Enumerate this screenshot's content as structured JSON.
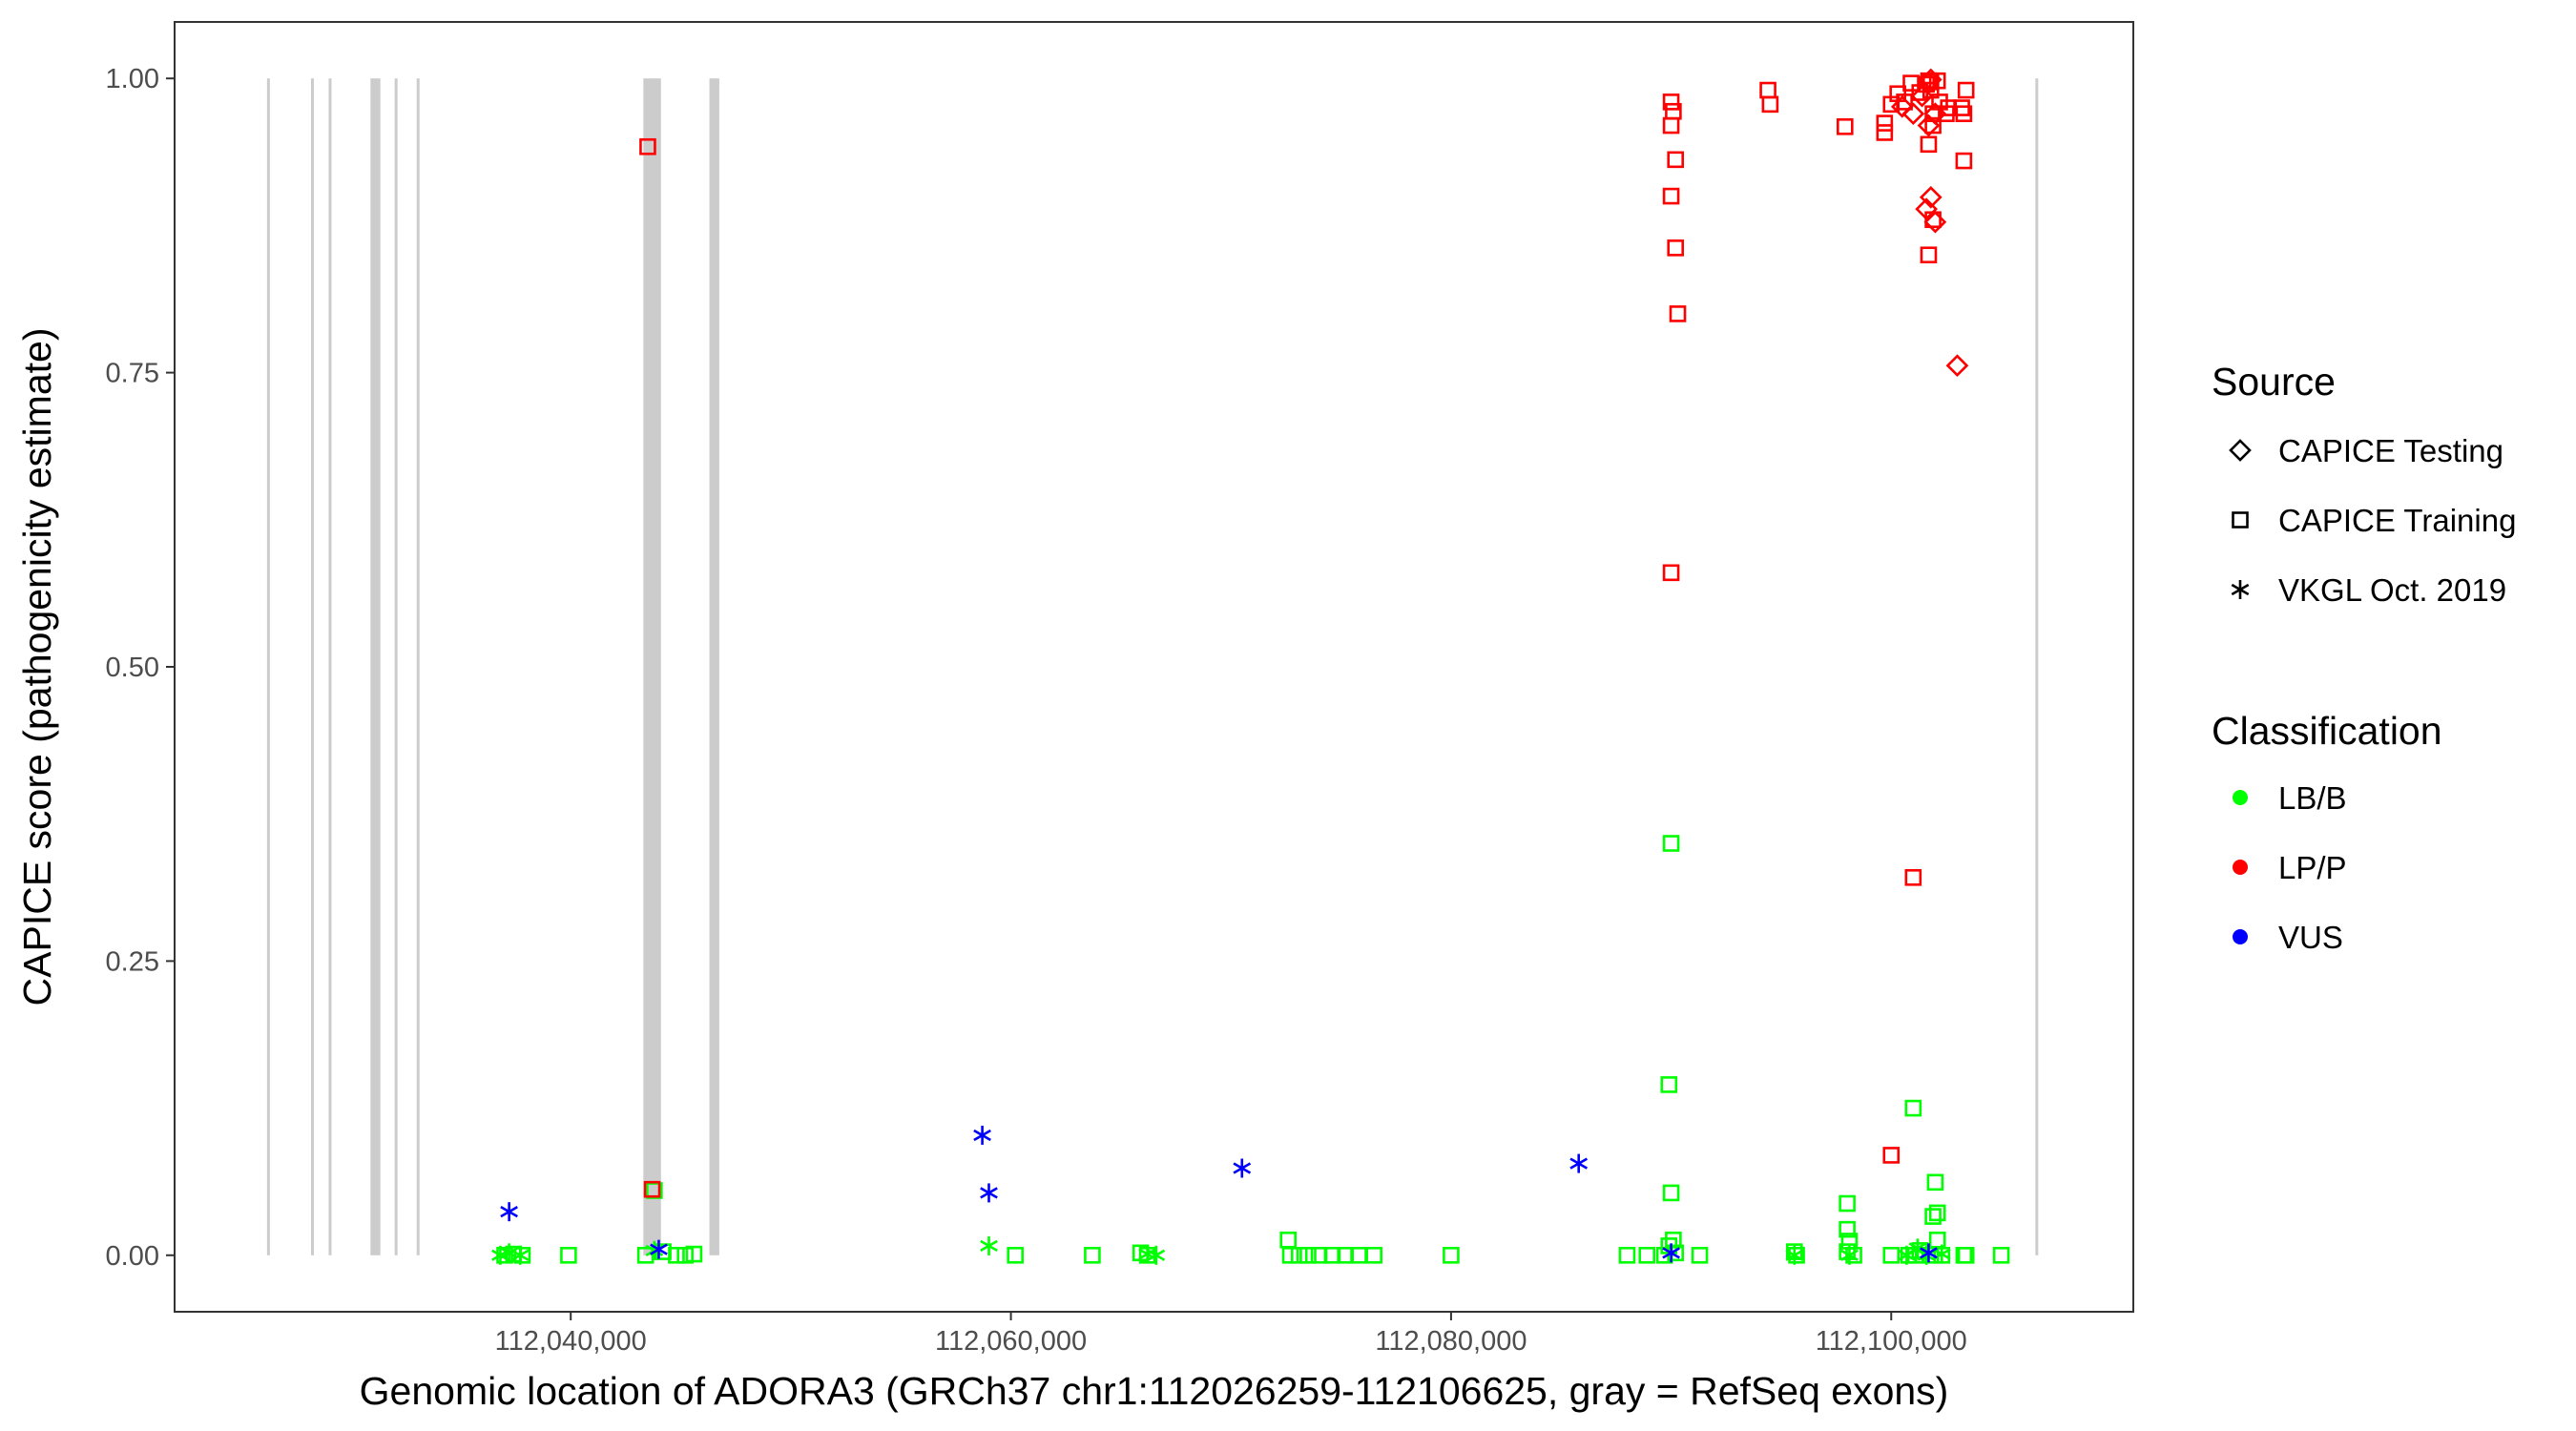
{
  "chart_data": {
    "type": "scatter",
    "title": "",
    "xlabel": "Genomic location of ADORA3 (GRCh37 chr1:112026259-112106625, gray = RefSeq exons)",
    "ylabel": "CAPICE score (pathogenicity estimate)",
    "xlim": [
      112022000,
      112111000
    ],
    "ylim": [
      -0.048,
      1.048
    ],
    "x_ticks": [
      112040000,
      112060000,
      112080000,
      112100000
    ],
    "x_tick_labels": [
      "112,040,000",
      "112,060,000",
      "112,080,000",
      "112,100,000"
    ],
    "y_ticks": [
      0,
      0.25,
      0.5,
      0.75,
      1
    ],
    "y_tick_labels": [
      "0.00",
      "0.25",
      "0.50",
      "0.75",
      "1.00"
    ],
    "grid": false,
    "exons": [
      [
        112026200,
        112026320
      ],
      [
        112028200,
        112028320
      ],
      [
        112029000,
        112029120
      ],
      [
        112030900,
        112031350
      ],
      [
        112032000,
        112032120
      ],
      [
        112033000,
        112033120
      ],
      [
        112043300,
        112044100
      ],
      [
        112046300,
        112046750
      ],
      [
        112106550,
        112106680
      ]
    ],
    "exon_color": "#cccccc",
    "colors": {
      "LB/B": "#00ff00",
      "LP/P": "#ff0000",
      "VUS": "#0000ff"
    },
    "legend": {
      "position": "right",
      "source_title": "Source",
      "source_items": [
        {
          "label": "CAPICE Testing",
          "shape": "diamond"
        },
        {
          "label": "CAPICE Training",
          "shape": "square"
        },
        {
          "label": "VKGL Oct. 2019",
          "shape": "asterisk"
        }
      ],
      "class_title": "Classification",
      "class_items": [
        {
          "label": "LB/B",
          "color": "#00ff00"
        },
        {
          "label": "LP/P",
          "color": "#ff0000"
        },
        {
          "label": "VUS",
          "color": "#0000ff"
        }
      ]
    },
    "series": [
      {
        "name": "CAPICE Training",
        "classification": "LB/B",
        "shape": "square",
        "color": "#00ff00",
        "points": [
          [
            112037000,
            0.0
          ],
          [
            112037400,
            0.001
          ],
          [
            112037800,
            0.0
          ],
          [
            112039900,
            0.0
          ],
          [
            112043400,
            0.0
          ],
          [
            112043800,
            0.055
          ],
          [
            112044200,
            0.003
          ],
          [
            112044800,
            0.0
          ],
          [
            112045200,
            0.0
          ],
          [
            112045600,
            0.001
          ],
          [
            112060200,
            0.0
          ],
          [
            112063700,
            0.0
          ],
          [
            112065900,
            0.002
          ],
          [
            112066200,
            0.0
          ],
          [
            112072600,
            0.013
          ],
          [
            112072700,
            0.0
          ],
          [
            112073100,
            0.0
          ],
          [
            112073500,
            0.0
          ],
          [
            112074000,
            0.0
          ],
          [
            112074600,
            0.0
          ],
          [
            112075200,
            0.0
          ],
          [
            112075800,
            0.0
          ],
          [
            112076500,
            0.0
          ],
          [
            112080000,
            0.0
          ],
          [
            112088000,
            0.0
          ],
          [
            112088900,
            0.0
          ],
          [
            112089700,
            0.0
          ],
          [
            112090000,
            0.35
          ],
          [
            112089900,
            0.145
          ],
          [
            112090000,
            0.053
          ],
          [
            112090100,
            0.013
          ],
          [
            112089900,
            0.008
          ],
          [
            112090200,
            0.002
          ],
          [
            112091300,
            0.0
          ],
          [
            112095600,
            0.003
          ],
          [
            112095700,
            0.0
          ],
          [
            112098000,
            0.044
          ],
          [
            112098000,
            0.022
          ],
          [
            112098100,
            0.012
          ],
          [
            112098000,
            0.003
          ],
          [
            112098300,
            0.0
          ],
          [
            112100000,
            0.0
          ],
          [
            112100800,
            0.0
          ],
          [
            112101100,
            0.0
          ],
          [
            112101000,
            0.125
          ],
          [
            112101300,
            0.004
          ],
          [
            112101800,
            0.0
          ],
          [
            112102000,
            0.062
          ],
          [
            112102100,
            0.036
          ],
          [
            112101900,
            0.033
          ],
          [
            112102100,
            0.013
          ],
          [
            112102300,
            0.0
          ],
          [
            112103300,
            0.0
          ],
          [
            112103400,
            0.0
          ],
          [
            112105000,
            0.0
          ]
        ]
      },
      {
        "name": "CAPICE Training",
        "classification": "LP/P",
        "shape": "square",
        "color": "#ff0000",
        "points": [
          [
            112043500,
            0.942
          ],
          [
            112043700,
            0.056
          ],
          [
            112090000,
            0.98
          ],
          [
            112090100,
            0.972
          ],
          [
            112090000,
            0.96
          ],
          [
            112090200,
            0.931
          ],
          [
            112090000,
            0.9
          ],
          [
            112090200,
            0.856
          ],
          [
            112090300,
            0.8
          ],
          [
            112090000,
            0.58
          ],
          [
            112094400,
            0.99
          ],
          [
            112094500,
            0.978
          ],
          [
            112097900,
            0.959
          ],
          [
            112099700,
            0.962
          ],
          [
            112099700,
            0.954
          ],
          [
            112100000,
            0.978
          ],
          [
            112100300,
            0.987
          ],
          [
            112100600,
            0.98
          ],
          [
            112100900,
            0.996
          ],
          [
            112101300,
            0.988
          ],
          [
            112101600,
            0.995
          ],
          [
            112101700,
            0.998
          ],
          [
            112101800,
            0.997
          ],
          [
            112101800,
            0.99
          ],
          [
            112101900,
            0.97
          ],
          [
            112101900,
            0.96
          ],
          [
            112101700,
            0.944
          ],
          [
            112102100,
            0.998
          ],
          [
            112102200,
            0.98
          ],
          [
            112102500,
            0.97
          ],
          [
            112102600,
            0.975
          ],
          [
            112103400,
            0.99
          ],
          [
            112103200,
            0.975
          ],
          [
            112103300,
            0.97
          ],
          [
            112103300,
            0.93
          ],
          [
            112101900,
            0.88
          ],
          [
            112101700,
            0.85
          ],
          [
            112101000,
            0.321
          ],
          [
            112100000,
            0.085
          ]
        ]
      },
      {
        "name": "CAPICE Testing",
        "classification": "LP/P",
        "shape": "diamond",
        "color": "#ff0000",
        "points": [
          [
            112100500,
            0.976
          ],
          [
            112101000,
            0.97
          ],
          [
            112101400,
            0.985
          ],
          [
            112101800,
            0.999
          ],
          [
            112102000,
            0.97
          ],
          [
            112101700,
            0.96
          ],
          [
            112101800,
            0.899
          ],
          [
            112101600,
            0.889
          ],
          [
            112102000,
            0.878
          ],
          [
            112103000,
            0.756
          ]
        ]
      },
      {
        "name": "VKGL Oct. 2019",
        "classification": "LB/B",
        "shape": "asterisk",
        "color": "#00ff00",
        "points": [
          [
            112036800,
            0.0
          ],
          [
            112037200,
            0.002
          ],
          [
            112037700,
            0.0
          ],
          [
            112043800,
            0.004
          ],
          [
            112059000,
            0.008
          ],
          [
            112066200,
            0.001
          ],
          [
            112066600,
            0.0
          ],
          [
            112095600,
            0.0
          ],
          [
            112098100,
            0.0
          ],
          [
            112100700,
            0.0
          ],
          [
            112101200,
            0.006
          ],
          [
            112101600,
            0.0
          ],
          [
            112102300,
            0.001
          ]
        ]
      },
      {
        "name": "VKGL Oct. 2019",
        "classification": "VUS",
        "shape": "asterisk",
        "color": "#0000ff",
        "points": [
          [
            112037200,
            0.037
          ],
          [
            112044000,
            0.005
          ],
          [
            112058700,
            0.102
          ],
          [
            112059000,
            0.053
          ],
          [
            112070500,
            0.074
          ],
          [
            112085800,
            0.078
          ],
          [
            112090000,
            0.002
          ],
          [
            112101700,
            0.002
          ]
        ]
      }
    ]
  }
}
